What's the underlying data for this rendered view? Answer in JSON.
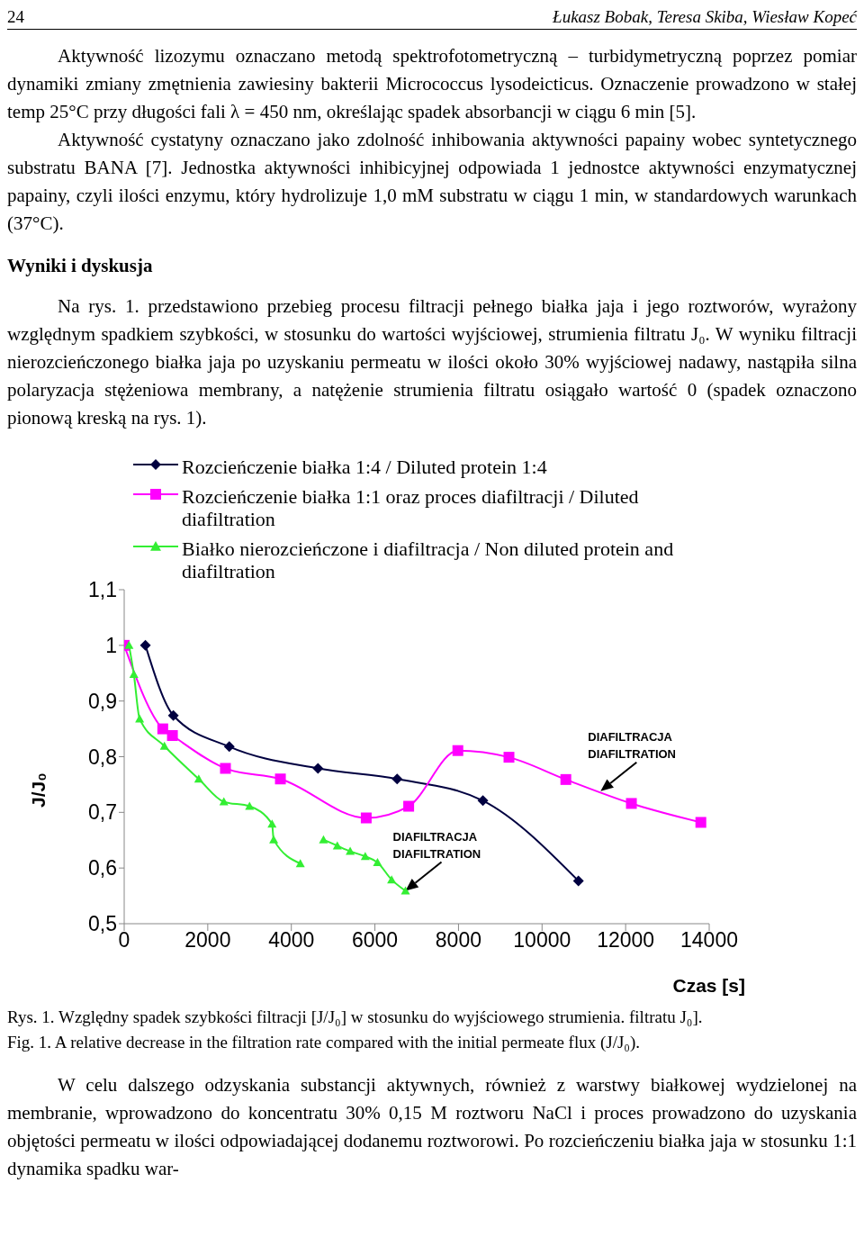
{
  "chart_data": {
    "type": "line",
    "annotations": [
      "24",
      "Łukasz Bobak, Teresa Skiba, Wiesław Kopeć",
      "Aktywność lizozymu oznaczano metodą spektrofotometryczną – turbidymetryczną poprzez pomiar dynamiki zmiany zmętnienia zawiesiny bakterii Micrococcus lysodeicticus. Oznaczenie prowadzono w stałej temp 25°C przy długości fali λ = 450 nm, określając spadek absorbancji w ciągu 6 min [5].",
      "Aktywność cystatyny oznaczano jako zdolność inhibowania aktywności papainy wobec syntetycznego substratu BANA [7]. Jednostka aktywności inhibicyjnej odpowiada 1 jednostce aktywności enzymatycznej papainy, czyli ilości enzymu, który hydrolizuje 1,0 mM substratu w ciągu 1 min, w standardowych warunkach (37°C).",
      "Wyniki i dyskusja",
      "Na rys. 1. przedstawiono przebieg procesu filtracji pełnego białka jaja i jego roztworów, wyrażony względnym spadkiem szybkości, w stosunku do wartości wyjściowej, strumienia filtratu J₀. W wyniku filtracji nierozcieńczonego białka jaja po uzyskaniu permeatu w ilości około 30% wyjściowej nadawy, nastąpiła silna polaryzacja stężeniowa membrany, a natężenie strumienia filtratu osiągało wartość 0 (spadek oznaczono pionową kreską na rys. 1).",
      "Rys. 1. Względny spadek szybkości filtracji [J/J₀] w stosunku do wyjściowego strumienia. filtratu J₀].",
      "Fig. 1. A relative decrease in the filtration rate compared with the initial permeate flux (J/J₀).",
      "W celu dalszego odzyskania substancji aktywnych, również z warstwy białkowej wydzielonej na membranie, wprowadzono do koncentratu 30% 0,15 M roztworu NaCl i proces prowadzono do uzyskania objętości permeatu w ilości odpowiadającej dodanemu roztworowi. Po rozcieńczeniu białka jaja w stosunku 1:1 dynamika spadku war-",
      {
        "text": "DIAFILTRACJA\nDIAFILTRATION",
        "x": 6731,
        "y": 0.559
      },
      {
        "text": "DIAFILTRACJA\nDIAFILTRATION",
        "x": 11400,
        "y": 0.738
      }
    ],
    "xlabel": "Czas [s]",
    "ylabel": "J/J₀",
    "xlim": [
      0,
      14000
    ],
    "xticks": [
      0,
      2000,
      4000,
      6000,
      8000,
      10000,
      12000,
      14000
    ],
    "ylim": [
      0.5,
      1.1
    ],
    "yticks": [
      {
        "value": 0.5,
        "label": "0,5"
      },
      {
        "value": 0.6,
        "label": "0,6"
      },
      {
        "value": 0.7,
        "label": "0,7"
      },
      {
        "value": 0.8,
        "label": "0,8"
      },
      {
        "value": 0.9,
        "label": "0,9"
      },
      {
        "value": 1,
        "label": "1"
      },
      {
        "value": 1.1,
        "label": "1,1"
      }
    ],
    "grid": false,
    "legend": "top right",
    "series": [
      {
        "name": "Rozcieńczenie białka 1:4 / Diluted protein 1:4",
        "color": "#000040",
        "marker": "diamond",
        "x": [
          508,
          1177,
          2515,
          4638,
          6531,
          8585,
          10870
        ],
        "values": [
          1.0,
          0.874,
          0.818,
          0.779,
          0.76,
          0.721,
          0.577
        ]
      },
      {
        "name": "Rozcieńczenie białka 1:1 oraz proces diafiltracji / Diluted diafiltration",
        "color": "#ff00ff",
        "marker": "square",
        "x": [
          0,
          923,
          1154,
          2423,
          3738,
          5792,
          6808,
          7985,
          9208,
          10569,
          12138,
          13800
        ],
        "values": [
          1.0,
          0.85,
          0.838,
          0.779,
          0.76,
          0.69,
          0.711,
          0.811,
          0.799,
          0.759,
          0.716,
          0.682
        ]
      },
      {
        "name": "Białko nierozcieńczone i diafiltracja / Non diluted protein and diafiltration",
        "color": "#33ee33",
        "marker": "triangle",
        "x": [
          115,
          231,
          369,
          962,
          1784,
          2385,
          3000,
          3538,
          3577,
          4215,
          4500,
          4769,
          5100,
          5408,
          5769,
          6062,
          6400,
          6731
        ],
        "values": [
          1.0,
          0.948,
          0.868,
          0.819,
          0.76,
          0.719,
          0.711,
          0.679,
          0.651,
          0.608,
          null,
          0.651,
          0.64,
          0.63,
          0.621,
          0.61,
          0.579,
          0.559
        ]
      }
    ]
  }
}
